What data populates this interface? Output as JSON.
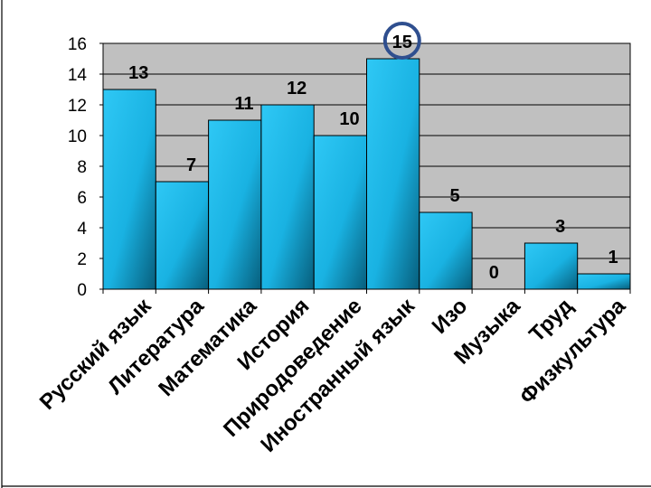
{
  "chart_data": {
    "type": "bar",
    "categories": [
      "Русский язык",
      "Литература",
      "Математика",
      "История",
      "Природоведение",
      "Иностранный язык",
      "Изо",
      "Музыка",
      "Труд",
      "Физкультура"
    ],
    "values": [
      13,
      7,
      11,
      12,
      10,
      15,
      5,
      0,
      3,
      1
    ],
    "ylim": [
      0,
      16
    ],
    "yticks": [
      0,
      2,
      4,
      6,
      8,
      10,
      12,
      14,
      16
    ],
    "grid": true,
    "data_labels": true,
    "highlighted_category": "Иностранный язык",
    "colors": {
      "plot_background": "#c0c0c0",
      "bar": "#19b6e8",
      "bar_dark": "#075e7c",
      "highlight_circle": "#2f4f8f"
    }
  }
}
